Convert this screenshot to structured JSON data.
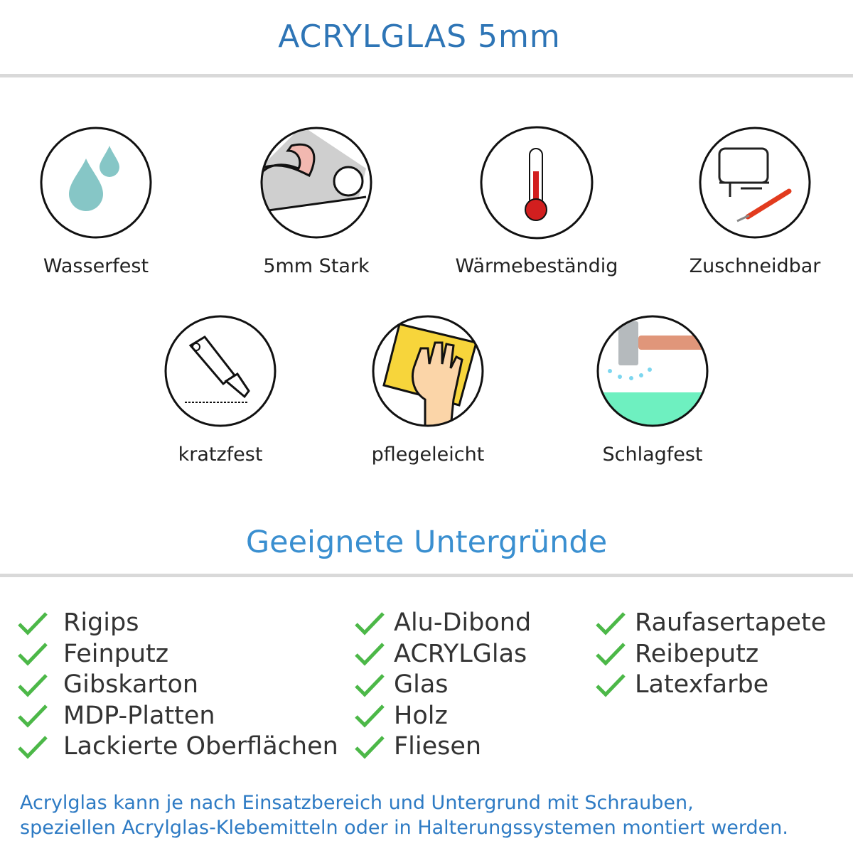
{
  "header": {
    "title": "ACRYLGLAS 5mm"
  },
  "features_row1": [
    {
      "label": "Wasserfest",
      "icon": "water-drops-icon"
    },
    {
      "label": "5mm Stark",
      "icon": "strong-arm-icon"
    },
    {
      "label": "Wärmebeständig",
      "icon": "thermometer-icon"
    },
    {
      "label": "Zuschneidbar",
      "icon": "jigsaw-cutter-icon"
    }
  ],
  "features_row2": [
    {
      "label": "kratzfest",
      "icon": "box-cutter-icon"
    },
    {
      "label": "pflegeleicht",
      "icon": "hand-sponge-icon"
    },
    {
      "label": "Schlagfest",
      "icon": "hammer-impact-icon"
    }
  ],
  "surfaces": {
    "title": "Geeignete Untergründe",
    "columns": [
      [
        "Rigips",
        "Feinputz",
        "Gibskarton",
        "MDP-Platten",
        "Lackierte Oberflächen"
      ],
      [
        "Alu-Dibond",
        "ACRYLGlas",
        "Glas",
        "Holz",
        "Fliesen"
      ],
      [
        "Raufasertapete",
        "Reibeputz",
        "Latexfarbe"
      ]
    ]
  },
  "footer": {
    "line1": "Acrylglas kann je nach Einsatzbereich und Untergrund mit Schrauben,",
    "line2": "speziellen Acrylglas-Klebemitteln oder in Halterungssystemen montiert werden."
  },
  "colors": {
    "title": "#2e75b6",
    "subtitle": "#3a8fd0",
    "check": "#4cb848",
    "divider": "#d9d9d9"
  }
}
